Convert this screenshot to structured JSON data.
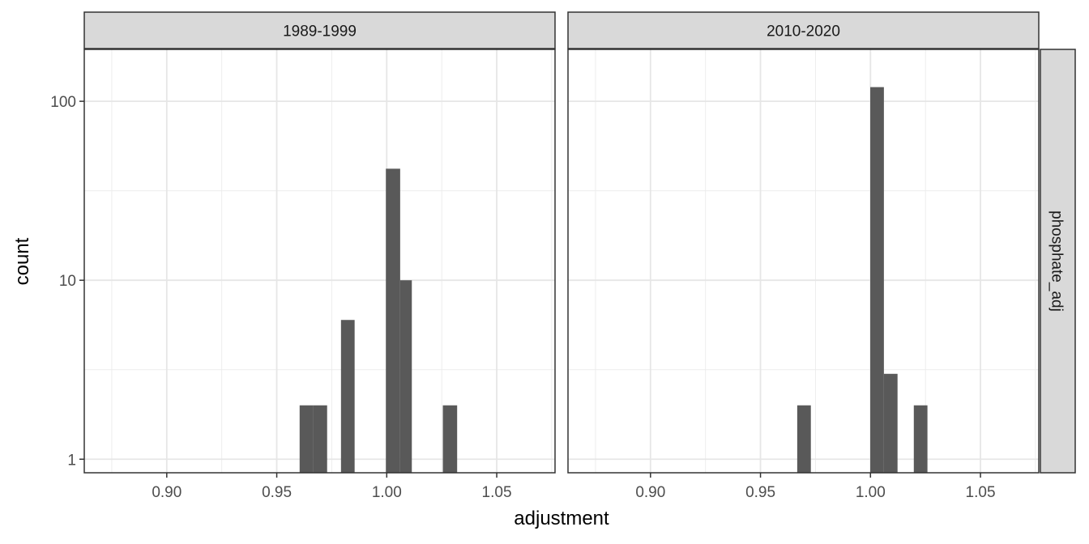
{
  "chart_data": {
    "type": "bar",
    "subtype": "histogram-faceted",
    "xlabel": "adjustment",
    "ylabel": "count",
    "y_scale": "log10",
    "ylim": [
      0.84,
      195
    ],
    "xlim": [
      0.8625,
      1.0765
    ],
    "x_ticks": [
      {
        "value": 0.9,
        "label": "0.90"
      },
      {
        "value": 0.95,
        "label": "0.95"
      },
      {
        "value": 1.0,
        "label": "1.00"
      },
      {
        "value": 1.05,
        "label": "1.05"
      }
    ],
    "y_ticks": [
      {
        "value": 1,
        "label": "1"
      },
      {
        "value": 10,
        "label": "10"
      },
      {
        "value": 100,
        "label": "100"
      }
    ],
    "row_strip": "phosphate_adj",
    "bar_color": "#595959",
    "grid": true,
    "facets": [
      {
        "strip": "1989-1999",
        "bars": [
          {
            "x0": 0.9604,
            "x1": 0.9667,
            "count": 2
          },
          {
            "x0": 0.9667,
            "x1": 0.9729,
            "count": 2
          },
          {
            "x0": 0.9792,
            "x1": 0.9854,
            "count": 6
          },
          {
            "x0": 0.9996,
            "x1": 1.0061,
            "count": 42
          },
          {
            "x0": 1.0061,
            "x1": 1.0114,
            "count": 10
          },
          {
            "x0": 1.0255,
            "x1": 1.032,
            "count": 2
          }
        ]
      },
      {
        "strip": "2010-2020",
        "bars": [
          {
            "x0": 0.9667,
            "x1": 0.9729,
            "count": 2
          },
          {
            "x0": 0.9999,
            "x1": 1.0061,
            "count": 120
          },
          {
            "x0": 1.0061,
            "x1": 1.0123,
            "count": 3
          },
          {
            "x0": 1.0197,
            "x1": 1.0259,
            "count": 2
          }
        ]
      }
    ]
  }
}
